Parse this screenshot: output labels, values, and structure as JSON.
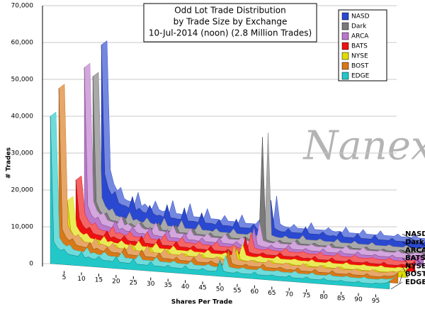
{
  "chart_data": {
    "type": "area3d",
    "title": [
      "Odd Lot Trade Distribution",
      "by Trade Size by Exchange",
      "10-Jul-2014 (noon) (2.8 Million Trades)"
    ],
    "x_label": "Shares Per Trade",
    "y_label": "# Trades",
    "annotation": "Nanex",
    "legend": "top-right",
    "grid": true,
    "xlim": [
      1,
      99
    ],
    "xticks": [
      5,
      10,
      15,
      20,
      25,
      30,
      35,
      40,
      45,
      50,
      55,
      60,
      65,
      70,
      75,
      80,
      85,
      90,
      95
    ],
    "ylim": [
      0,
      70000
    ],
    "yticks": [
      0,
      {
        "value": 10000,
        "label": "10,000"
      },
      {
        "value": 20000,
        "label": "20,000"
      },
      {
        "value": 30000,
        "label": "30,000"
      },
      {
        "value": 40000,
        "label": "40,000"
      },
      {
        "value": 50000,
        "label": "50,000"
      },
      {
        "value": 60000,
        "label": "60,000"
      },
      {
        "value": 70000,
        "label": "70,000"
      }
    ],
    "x": [
      1,
      2,
      3,
      4,
      5,
      6,
      7,
      8,
      9,
      10,
      11,
      12,
      13,
      14,
      15,
      16,
      17,
      18,
      19,
      20,
      21,
      22,
      23,
      24,
      25,
      26,
      27,
      28,
      29,
      30,
      31,
      32,
      33,
      34,
      35,
      36,
      37,
      38,
      39,
      40,
      41,
      42,
      43,
      44,
      45,
      46,
      47,
      48,
      49,
      50,
      51,
      52,
      53,
      54,
      55,
      56,
      57,
      58,
      59,
      60,
      61,
      62,
      63,
      64,
      65,
      66,
      67,
      68,
      69,
      70,
      71,
      72,
      73,
      74,
      75,
      76,
      77,
      78,
      79,
      80,
      81,
      82,
      83,
      84,
      85,
      86,
      87,
      88,
      89,
      90,
      91,
      92,
      93,
      94,
      95,
      96,
      97,
      98,
      99
    ],
    "series": [
      {
        "name": "NASD",
        "color": "#2a48d0",
        "values": [
          50000,
          15000,
          11300,
          9500,
          10500,
          7500,
          7000,
          6800,
          6300,
          9500,
          5800,
          6500,
          5500,
          5300,
          7500,
          5300,
          4800,
          5000,
          4500,
          8000,
          4500,
          4500,
          4300,
          4300,
          7500,
          4000,
          4000,
          4000,
          3800,
          6500,
          3800,
          3800,
          3800,
          3500,
          5000,
          3500,
          3500,
          3500,
          3300,
          5500,
          3300,
          3300,
          3300,
          3300,
          4500,
          3300,
          3000,
          3300,
          3300,
          11300,
          3800,
          3300,
          3000,
          3000,
          4000,
          3000,
          3000,
          3000,
          3000,
          4800,
          3000,
          3000,
          3000,
          3000,
          3800,
          3000,
          2800,
          3000,
          2800,
          4300,
          2800,
          2800,
          2800,
          2800,
          4000,
          2800,
          2800,
          2800,
          2800,
          4000,
          2800,
          2800,
          2800,
          2800,
          3500,
          2800,
          2800,
          2800,
          2800,
          3800,
          2800,
          2800,
          2800,
          2800,
          3500,
          3300,
          3500,
          4000,
          5500
        ]
      },
      {
        "name": "Dark",
        "color": "#7a7a7a",
        "values": [
          43000,
          9000,
          6800,
          5700,
          6300,
          4500,
          4200,
          4100,
          3800,
          5700,
          3500,
          3900,
          3300,
          3200,
          4500,
          3200,
          2900,
          3000,
          2700,
          4800,
          2700,
          2700,
          2600,
          2600,
          4500,
          2400,
          2400,
          2400,
          2300,
          3900,
          2300,
          2300,
          2300,
          2100,
          3000,
          2100,
          2100,
          2100,
          2000,
          3300,
          2000,
          2000,
          2000,
          2000,
          2700,
          2000,
          1800,
          2000,
          2000,
          30000,
          2300,
          2000,
          1800,
          1800,
          2400,
          1800,
          1800,
          1800,
          1800,
          2900,
          1800,
          1800,
          1800,
          1800,
          2300,
          1800,
          1700,
          1800,
          1700,
          2600,
          1700,
          1700,
          1700,
          1700,
          2400,
          1700,
          1700,
          1700,
          1700,
          2400,
          1700,
          1700,
          1700,
          1700,
          2100,
          1700,
          1700,
          1700,
          1700,
          2300,
          1700,
          1700,
          1700,
          1700,
          2100,
          2000,
          2100,
          2400,
          3300
        ]
      },
      {
        "name": "ARCA",
        "color": "#bb77cc",
        "values": [
          47000,
          9600,
          7200,
          6100,
          6700,
          4800,
          4500,
          4300,
          4000,
          6100,
          3700,
          4200,
          3500,
          3400,
          4800,
          3400,
          3000,
          3200,
          2900,
          5100,
          2900,
          2900,
          2700,
          2700,
          4800,
          2600,
          2600,
          2600,
          2400,
          4200,
          2400,
          2400,
          2400,
          2200,
          3200,
          2200,
          2200,
          2200,
          2100,
          3500,
          2100,
          2100,
          2100,
          2100,
          2900,
          2100,
          1900,
          2100,
          2100,
          7200,
          2400,
          2100,
          1900,
          1900,
          2600,
          1900,
          1900,
          1900,
          1900,
          3000,
          1900,
          1900,
          1900,
          1900,
          2400,
          1900,
          1800,
          1900,
          1800,
          2700,
          1800,
          1800,
          1800,
          1800,
          2600,
          1800,
          1800,
          1800,
          1800,
          2600,
          1800,
          1800,
          1800,
          1800,
          2200,
          1800,
          1800,
          1800,
          1800,
          2400,
          1800,
          1800,
          1800,
          1800,
          2200,
          2100,
          2200,
          2600,
          3500
        ]
      },
      {
        "name": "BATS",
        "color": "#ee1111",
        "values": [
          18000,
          7800,
          5900,
          4900,
          5500,
          3900,
          3600,
          3500,
          3300,
          4900,
          3000,
          3400,
          2900,
          2700,
          3900,
          2700,
          2500,
          2600,
          2300,
          4200,
          2300,
          2300,
          2200,
          2200,
          3900,
          2100,
          2100,
          2100,
          2000,
          3400,
          2000,
          2000,
          2000,
          1800,
          2600,
          1800,
          1800,
          1800,
          1700,
          2900,
          1700,
          1700,
          1700,
          1700,
          2300,
          1700,
          1600,
          1700,
          1700,
          5900,
          2000,
          1700,
          1600,
          1600,
          2100,
          1600,
          1600,
          1600,
          1600,
          2500,
          1600,
          1600,
          1600,
          1600,
          2000,
          1600,
          1400,
          1600,
          1400,
          2200,
          1400,
          1400,
          1400,
          1400,
          2100,
          1400,
          1400,
          1400,
          1400,
          2100,
          1400,
          1400,
          1400,
          1400,
          1800,
          1400,
          1400,
          1400,
          1400,
          2000,
          1400,
          1400,
          1400,
          1400,
          1800,
          1700,
          1800,
          2100,
          2900
        ]
      },
      {
        "name": "NYSE",
        "color": "#dede00",
        "values": [
          14000,
          6000,
          4500,
          3800,
          4200,
          3000,
          2800,
          2700,
          2500,
          3800,
          2300,
          2600,
          2200,
          2100,
          3000,
          2100,
          1900,
          2000,
          1800,
          3200,
          1800,
          1800,
          1700,
          1700,
          3000,
          1600,
          1600,
          1600,
          1500,
          2600,
          1500,
          1500,
          1500,
          1400,
          2000,
          1400,
          1400,
          1400,
          1300,
          2200,
          1300,
          1300,
          1300,
          1300,
          1800,
          1300,
          1200,
          1300,
          1300,
          4500,
          1500,
          1300,
          1200,
          1200,
          1600,
          1200,
          1200,
          1200,
          1200,
          1900,
          1200,
          1200,
          1200,
          1200,
          1500,
          1200,
          1100,
          1200,
          1100,
          1700,
          1100,
          1100,
          1100,
          1100,
          1600,
          1100,
          1100,
          1100,
          1100,
          1600,
          1100,
          1100,
          1100,
          1100,
          1400,
          1100,
          1100,
          1100,
          1100,
          1500,
          1100,
          1100,
          1100,
          1100,
          1400,
          1300,
          1400,
          1600,
          2200
        ]
      },
      {
        "name": "BOST",
        "color": "#d87818",
        "values": [
          46000,
          7800,
          5900,
          4900,
          5500,
          3900,
          3600,
          3500,
          3300,
          4900,
          3000,
          3400,
          2900,
          2700,
          3900,
          2700,
          2500,
          2600,
          2300,
          4200,
          2300,
          2300,
          2200,
          2200,
          3900,
          2100,
          2100,
          2100,
          2000,
          3400,
          2000,
          2000,
          2000,
          1800,
          2600,
          1800,
          1800,
          1800,
          1700,
          2900,
          1700,
          1700,
          1700,
          1700,
          2300,
          1700,
          1600,
          1700,
          1700,
          5900,
          2000,
          1700,
          1600,
          1600,
          2100,
          1600,
          1600,
          1600,
          1600,
          2500,
          1600,
          1600,
          1600,
          1600,
          2000,
          1600,
          1400,
          1600,
          1400,
          2200,
          1400,
          1400,
          1400,
          1400,
          2100,
          1400,
          1400,
          1400,
          1400,
          2100,
          1400,
          1400,
          1400,
          1400,
          1800,
          1400,
          1400,
          1400,
          1400,
          2000,
          1400,
          1400,
          1400,
          1400,
          1800,
          1700,
          1800,
          2100,
          2900
        ]
      },
      {
        "name": "EDGE",
        "color": "#22c8c8",
        "values": [
          40000,
          6000,
          4500,
          3800,
          4200,
          3000,
          2800,
          2700,
          2500,
          3800,
          2300,
          2600,
          2200,
          2100,
          3000,
          2100,
          1900,
          2000,
          1800,
          3200,
          1800,
          1800,
          1700,
          1700,
          3000,
          1600,
          1600,
          1600,
          1500,
          2600,
          1500,
          1500,
          1500,
          1400,
          2000,
          1400,
          1400,
          1400,
          1300,
          2200,
          1300,
          1300,
          1300,
          1300,
          1800,
          1300,
          1200,
          1300,
          1300,
          4500,
          1500,
          1300,
          1200,
          1200,
          1600,
          1200,
          1200,
          1200,
          1200,
          1900,
          1200,
          1200,
          1200,
          1200,
          1500,
          1200,
          1100,
          1200,
          1100,
          1700,
          1100,
          1100,
          1100,
          1100,
          1600,
          1100,
          1100,
          1100,
          1100,
          1600,
          1100,
          1100,
          1100,
          1100,
          1400,
          1100,
          1100,
          1100,
          1100,
          1500,
          1100,
          1100,
          1100,
          1100,
          1400,
          1300,
          1400,
          1600,
          2200
        ]
      }
    ]
  }
}
